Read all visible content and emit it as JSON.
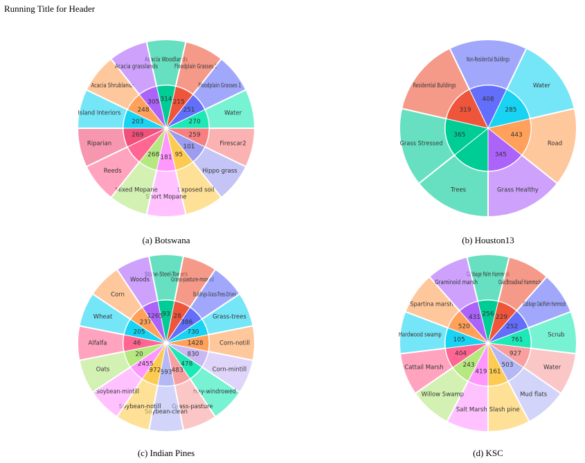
{
  "running_title": "Running Title for Header",
  "chart_data": [
    {
      "type": "sunburst",
      "title": "(a) Botswana",
      "categories": [
        "Acacia Woodlands",
        "Floodplain Grasses 2",
        "Floodplain Grasses 1",
        "Water",
        "Firescar2",
        "Hippo grass",
        "Exposed soil",
        "Short Mopane",
        "Mixed Mopane",
        "Reeds",
        "Riparian",
        "Island Interiors",
        "Acacia Shrublands",
        "Acacia grasslands"
      ],
      "values": [
        314,
        215,
        251,
        270,
        259,
        101,
        95,
        181,
        268,
        null,
        269,
        203,
        248,
        305
      ],
      "colors": [
        "#00cc96",
        "#EF553B",
        "#636efa",
        "#1de9b6",
        "#f87f7f",
        "#9c9cf0",
        "#FECB52",
        "#FF97FF",
        "#B6E880",
        "#FF6692",
        "#f0507a",
        "#19d3f3",
        "#FFA15A",
        "#ab63fa"
      ]
    },
    {
      "type": "sunburst",
      "title": "(b) Houston13",
      "categories": [
        "Non-Residential Buildings",
        "Water",
        "Road",
        "Grass Healthy",
        "Trees",
        "Grass Stressed",
        "Residential Buildings"
      ],
      "values": [
        408,
        285,
        443,
        345,
        null,
        365,
        319
      ],
      "colors": [
        "#636efa",
        "#19d3f3",
        "#FFA15A",
        "#ab63fa",
        "#00cc96",
        "#00cc96",
        "#EF553B"
      ]
    },
    {
      "type": "sunburst",
      "title": "(c) Indian Pines",
      "categories": [
        "Stone-Steel-Towers",
        "Grass-pasture-mowed",
        "Buildings-Grass-Trees-Drives",
        "Grass-trees",
        "Corn-notill",
        "Corn-mintill",
        "Hay-windrowed",
        "Grass-pasture",
        "Soybean-clean",
        "Soybean-notill",
        "Soybean-mintill",
        "Oats",
        "Alfalfa",
        "Wheat",
        "Corn",
        "Woods"
      ],
      "values": [
        93,
        28,
        386,
        730,
        1428,
        830,
        478,
        483,
        593,
        972,
        2455,
        20,
        46,
        205,
        237,
        1265
      ],
      "colors": [
        "#00cc96",
        "#EF553B",
        "#636efa",
        "#19d3f3",
        "#FFA15A",
        "#c9b8f5",
        "#1de9b6",
        "#f8a0a0",
        "#b4b8f5",
        "#FECB52",
        "#FF97FF",
        "#B6E880",
        "#FF6692",
        "#19d3f3",
        "#FFA15A",
        "#ab63fa"
      ]
    },
    {
      "type": "sunburst",
      "title": "(d) KSC",
      "categories": [
        "Cabbage Palm Hammock",
        "Oak/Broadleaf Hammock",
        "Cabbage Oak/Palm Hammock",
        "Scrub",
        "Water",
        "Mud flats",
        "Slash pine",
        "Salt Marsh",
        "Willow Swamp",
        "Cattail Marsh",
        "Hardwood swamp",
        "Spartina marsh",
        "Graminoid marsh"
      ],
      "values": [
        256,
        229,
        252,
        761,
        927,
        503,
        161,
        419,
        243,
        404,
        105,
        520,
        431
      ],
      "colors": [
        "#00cc96",
        "#EF553B",
        "#636efa",
        "#1de9b6",
        "#f8a0a0",
        "#b4b8f5",
        "#FECB52",
        "#FF97FF",
        "#B6E880",
        "#FF6692",
        "#19d3f3",
        "#FFA15A",
        "#ab63fa"
      ]
    }
  ]
}
